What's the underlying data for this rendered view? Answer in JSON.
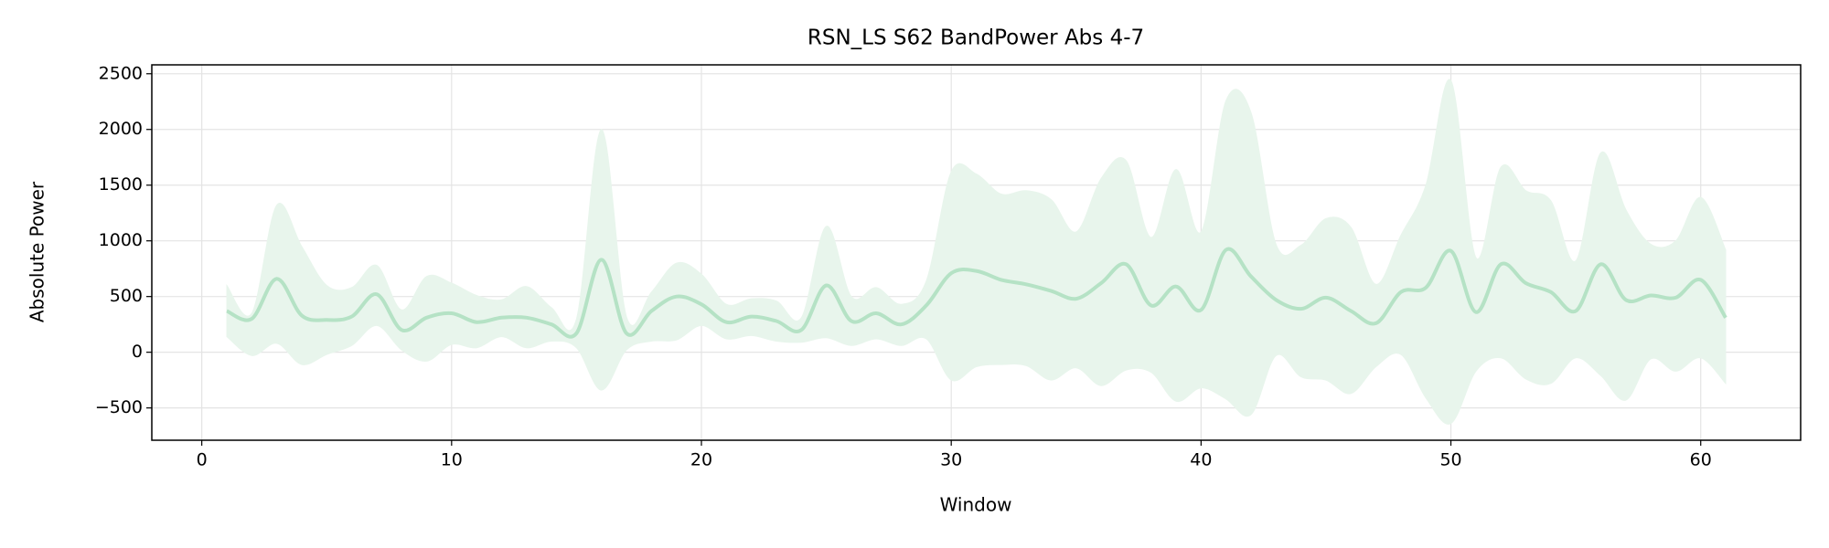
{
  "chart_data": {
    "type": "line",
    "title": "RSN_LS S62 BandPower Abs 4-7",
    "xlabel": "Window",
    "ylabel": "Absolute Power",
    "x": [
      1,
      2,
      3,
      4,
      5,
      6,
      7,
      8,
      9,
      10,
      11,
      12,
      13,
      14,
      15,
      16,
      17,
      18,
      19,
      20,
      21,
      22,
      23,
      24,
      25,
      26,
      27,
      28,
      29,
      30,
      31,
      32,
      33,
      34,
      35,
      36,
      37,
      38,
      39,
      40,
      41,
      42,
      43,
      44,
      45,
      46,
      47,
      48,
      49,
      50,
      51,
      52,
      53,
      54,
      55,
      56,
      57,
      58,
      59,
      60,
      61
    ],
    "values": [
      370,
      300,
      660,
      330,
      290,
      320,
      520,
      200,
      310,
      350,
      270,
      310,
      310,
      250,
      170,
      830,
      170,
      370,
      500,
      430,
      270,
      320,
      280,
      200,
      600,
      280,
      350,
      250,
      420,
      710,
      730,
      650,
      610,
      550,
      480,
      620,
      790,
      420,
      590,
      380,
      920,
      680,
      470,
      390,
      490,
      370,
      260,
      540,
      580,
      910,
      360,
      790,
      620,
      540,
      370,
      790,
      470,
      510,
      490,
      650,
      310
    ],
    "band_upper": [
      600,
      350,
      1320,
      950,
      600,
      580,
      780,
      380,
      680,
      620,
      510,
      470,
      590,
      400,
      300,
      2000,
      320,
      540,
      800,
      700,
      430,
      480,
      460,
      310,
      1130,
      500,
      580,
      430,
      640,
      1620,
      1600,
      1420,
      1450,
      1370,
      1080,
      1560,
      1720,
      1030,
      1640,
      1080,
      2260,
      2150,
      970,
      960,
      1200,
      1120,
      610,
      1050,
      1500,
      2440,
      850,
      1660,
      1450,
      1360,
      820,
      1790,
      1280,
      970,
      1000,
      1390,
      920
    ],
    "band_lower": [
      140,
      -30,
      80,
      -110,
      -20,
      60,
      240,
      20,
      -80,
      70,
      40,
      140,
      40,
      100,
      40,
      -340,
      20,
      100,
      110,
      240,
      120,
      150,
      100,
      90,
      130,
      60,
      120,
      60,
      120,
      -250,
      -130,
      -110,
      -120,
      -250,
      -140,
      -300,
      -160,
      -180,
      -440,
      -320,
      -420,
      -560,
      -30,
      -220,
      -250,
      -370,
      -130,
      -20,
      -410,
      -640,
      -170,
      -50,
      -240,
      -280,
      -50,
      -210,
      -430,
      -60,
      -170,
      -50,
      -280
    ],
    "color": "#b5e2c5",
    "band_color": "#e8f5ec",
    "xlim": [
      -2,
      64
    ],
    "ylim": [
      -790,
      2580
    ],
    "xticks": [
      0,
      10,
      20,
      30,
      40,
      50,
      60
    ],
    "yticks": [
      {
        "value": -500,
        "label": "−500"
      },
      0,
      500,
      1000,
      1500,
      2000,
      2500
    ],
    "grid": true
  }
}
